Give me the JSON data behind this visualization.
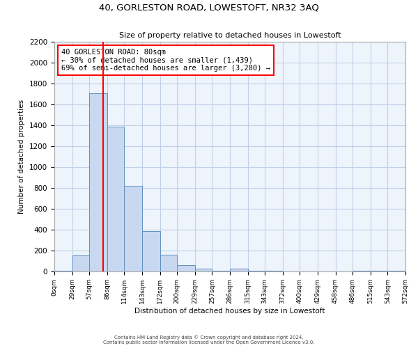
{
  "title": "40, GORLESTON ROAD, LOWESTOFT, NR32 3AQ",
  "subtitle": "Size of property relative to detached houses in Lowestoft",
  "xlabel": "Distribution of detached houses by size in Lowestoft",
  "ylabel": "Number of detached properties",
  "bin_edges": [
    0,
    29,
    57,
    86,
    114,
    143,
    172,
    200,
    229,
    257,
    286,
    315,
    343,
    372,
    400,
    429,
    458,
    486,
    515,
    543,
    572
  ],
  "bin_labels": [
    "0sqm",
    "29sqm",
    "57sqm",
    "86sqm",
    "114sqm",
    "143sqm",
    "172sqm",
    "200sqm",
    "229sqm",
    "257sqm",
    "286sqm",
    "315sqm",
    "343sqm",
    "372sqm",
    "400sqm",
    "429sqm",
    "458sqm",
    "486sqm",
    "515sqm",
    "543sqm",
    "572sqm"
  ],
  "counts": [
    10,
    155,
    1710,
    1390,
    820,
    385,
    160,
    60,
    30,
    5,
    30,
    5,
    5,
    0,
    0,
    0,
    0,
    5,
    5,
    5
  ],
  "bar_color": "#c8d8f0",
  "bar_edge_color": "#6090c0",
  "grid_color": "#c0d0e8",
  "bg_color": "#eef4fc",
  "vline_x": 80,
  "vline_color": "red",
  "annotation_box_text": "40 GORLESTON ROAD: 80sqm\n← 30% of detached houses are smaller (1,439)\n69% of semi-detached houses are larger (3,280) →",
  "footer_line1": "Contains HM Land Registry data © Crown copyright and database right 2024.",
  "footer_line2": "Contains public sector information licensed under the Open Government Licence v3.0.",
  "ylim": [
    0,
    2200
  ],
  "yticks": [
    0,
    200,
    400,
    600,
    800,
    1000,
    1200,
    1400,
    1600,
    1800,
    2000,
    2200
  ]
}
